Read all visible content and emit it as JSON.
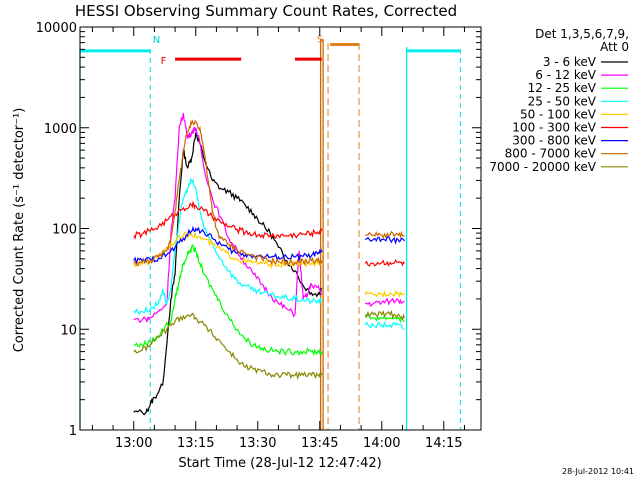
{
  "chart_data": {
    "type": "line",
    "title": "HESSI Observing Summary Count Rates, Corrected",
    "xlabel": "Start Time (28-Jul-12 12:47:42)",
    "ylabel": "Corrected Count Rate (s⁻¹ detector⁻¹)",
    "yscale": "log",
    "ylim": [
      1,
      10000
    ],
    "xlim_minutes_after_1247": [
      0,
      97
    ],
    "y_ticks": [
      {
        "value": 1,
        "label": "1"
      },
      {
        "value": 10,
        "label": "10"
      },
      {
        "value": 100,
        "label": "100"
      },
      {
        "value": 1000,
        "label": "1000"
      },
      {
        "value": 10000,
        "label": "10000"
      }
    ],
    "x_ticks": [
      {
        "value": 13,
        "label": "13:00"
      },
      {
        "value": 28,
        "label": "13:15"
      },
      {
        "value": 43,
        "label": "13:30"
      },
      {
        "value": 58,
        "label": "13:45"
      },
      {
        "value": 73,
        "label": "14:00"
      },
      {
        "value": 88,
        "label": "14:15"
      }
    ],
    "legend_title": [
      "Det 1,3,5,6,7,9,",
      "Att 0"
    ],
    "legend_position": "right",
    "series": [
      {
        "name": "3 - 6 keV",
        "color": "#000000",
        "points": [
          [
            13,
            1.5
          ],
          [
            16,
            1.5
          ],
          [
            17,
            1.8
          ],
          [
            18,
            2.1
          ],
          [
            20,
            2.8
          ],
          [
            22,
            20
          ],
          [
            23,
            35
          ],
          [
            24,
            200
          ],
          [
            25,
            600
          ],
          [
            26,
            400
          ],
          [
            27,
            500
          ],
          [
            28,
            900
          ],
          [
            29,
            700
          ],
          [
            30,
            500
          ],
          [
            32,
            300
          ],
          [
            34,
            250
          ],
          [
            36,
            230
          ],
          [
            38,
            200
          ],
          [
            40,
            170
          ],
          [
            42,
            140
          ],
          [
            44,
            110
          ],
          [
            46,
            90
          ],
          [
            48,
            65
          ],
          [
            50,
            48
          ],
          [
            52,
            38
          ],
          [
            54,
            27
          ],
          [
            56,
            23
          ],
          [
            57.5,
            22
          ],
          [
            58.5,
            25
          ]
        ]
      },
      {
        "name": "6 - 12 keV",
        "color": "#ff00ff",
        "points": [
          [
            13,
            12.5
          ],
          [
            16,
            12.5
          ],
          [
            17,
            13
          ],
          [
            19,
            15
          ],
          [
            21,
            18
          ],
          [
            22,
            90
          ],
          [
            23,
            200
          ],
          [
            24,
            1000
          ],
          [
            25,
            1400
          ],
          [
            26,
            800
          ],
          [
            27,
            900
          ],
          [
            28,
            1000
          ],
          [
            29,
            700
          ],
          [
            30,
            400
          ],
          [
            32,
            200
          ],
          [
            34,
            130
          ],
          [
            36,
            80
          ],
          [
            38,
            60
          ],
          [
            40,
            45
          ],
          [
            42,
            35
          ],
          [
            44,
            28
          ],
          [
            46,
            22
          ],
          [
            48,
            18
          ],
          [
            50,
            16
          ],
          [
            52,
            14
          ],
          [
            53,
            60
          ],
          [
            54,
            20
          ],
          [
            55,
            22
          ],
          [
            56,
            28
          ],
          [
            57.5,
            26
          ],
          [
            58.5,
            22
          ],
          [
            69,
            18
          ],
          [
            71,
            18
          ],
          [
            73,
            18.5
          ],
          [
            75,
            19
          ],
          [
            77,
            19.5
          ],
          [
            78.5,
            19
          ]
        ]
      },
      {
        "name": "12 - 25 keV",
        "color": "#00ff00",
        "points": [
          [
            13,
            7
          ],
          [
            15,
            7
          ],
          [
            17,
            7.5
          ],
          [
            19,
            8.5
          ],
          [
            20,
            10
          ],
          [
            22,
            12
          ],
          [
            23,
            20
          ],
          [
            24,
            30
          ],
          [
            25,
            45
          ],
          [
            26,
            55
          ],
          [
            27,
            65
          ],
          [
            28,
            60
          ],
          [
            29,
            45
          ],
          [
            30,
            35
          ],
          [
            32,
            25
          ],
          [
            34,
            18
          ],
          [
            36,
            13
          ],
          [
            38,
            10
          ],
          [
            40,
            8
          ],
          [
            42,
            7
          ],
          [
            44,
            6.5
          ],
          [
            46,
            6.2
          ],
          [
            48,
            6
          ],
          [
            50,
            6
          ],
          [
            52,
            6
          ],
          [
            54,
            6
          ],
          [
            56,
            6
          ],
          [
            57.5,
            6
          ],
          [
            58.5,
            6
          ],
          [
            69,
            13
          ],
          [
            71,
            13
          ],
          [
            73,
            13
          ],
          [
            75,
            13
          ],
          [
            77,
            13
          ],
          [
            78.5,
            12
          ]
        ]
      },
      {
        "name": "25 - 50 keV",
        "color": "#00ffff",
        "points": [
          [
            13,
            15
          ],
          [
            15,
            15
          ],
          [
            17,
            16
          ],
          [
            19,
            18
          ],
          [
            20,
            25
          ],
          [
            21,
            18
          ],
          [
            22,
            25
          ],
          [
            23,
            60
          ],
          [
            24,
            120
          ],
          [
            25,
            200
          ],
          [
            26,
            250
          ],
          [
            27,
            300
          ],
          [
            28,
            250
          ],
          [
            29,
            150
          ],
          [
            30,
            100
          ],
          [
            32,
            70
          ],
          [
            34,
            50
          ],
          [
            36,
            38
          ],
          [
            38,
            30
          ],
          [
            40,
            27
          ],
          [
            42,
            24
          ],
          [
            44,
            23
          ],
          [
            46,
            22
          ],
          [
            48,
            21
          ],
          [
            50,
            20.5
          ],
          [
            52,
            20
          ],
          [
            54,
            19.5
          ],
          [
            56,
            19
          ],
          [
            57.5,
            19
          ],
          [
            58.5,
            19
          ],
          [
            69,
            11
          ],
          [
            71,
            11
          ],
          [
            73,
            11
          ],
          [
            75,
            11
          ],
          [
            77,
            11
          ],
          [
            78.5,
            10
          ]
        ]
      },
      {
        "name": "50 - 100 keV",
        "color": "#ffcc00",
        "points": [
          [
            13,
            44
          ],
          [
            15,
            45
          ],
          [
            17,
            48
          ],
          [
            19,
            55
          ],
          [
            21,
            65
          ],
          [
            23,
            75
          ],
          [
            25,
            85
          ],
          [
            27,
            88
          ],
          [
            28,
            85
          ],
          [
            30,
            78
          ],
          [
            32,
            70
          ],
          [
            34,
            62
          ],
          [
            36,
            55
          ],
          [
            38,
            50
          ],
          [
            40,
            47
          ],
          [
            42,
            46
          ],
          [
            44,
            45
          ],
          [
            46,
            44
          ],
          [
            48,
            44
          ],
          [
            50,
            44
          ],
          [
            52,
            44.5
          ],
          [
            54,
            45
          ],
          [
            56,
            45
          ],
          [
            57.5,
            45
          ],
          [
            58.5,
            45
          ],
          [
            69,
            22
          ],
          [
            71,
            22
          ],
          [
            73,
            22.5
          ],
          [
            75,
            23
          ],
          [
            77,
            23
          ],
          [
            78.5,
            22
          ]
        ]
      },
      {
        "name": "100 - 300 keV",
        "color": "#ff0000",
        "points": [
          [
            13,
            85
          ],
          [
            15,
            88
          ],
          [
            17,
            95
          ],
          [
            19,
            105
          ],
          [
            21,
            120
          ],
          [
            23,
            140
          ],
          [
            25,
            160
          ],
          [
            27,
            170
          ],
          [
            28,
            168
          ],
          [
            30,
            150
          ],
          [
            32,
            130
          ],
          [
            34,
            115
          ],
          [
            36,
            105
          ],
          [
            38,
            98
          ],
          [
            40,
            92
          ],
          [
            42,
            88
          ],
          [
            44,
            86
          ],
          [
            46,
            85
          ],
          [
            48,
            85
          ],
          [
            50,
            85
          ],
          [
            52,
            86
          ],
          [
            54,
            88
          ],
          [
            56,
            90
          ],
          [
            57.5,
            92
          ],
          [
            58.5,
            95
          ],
          [
            69,
            45
          ],
          [
            71,
            45
          ],
          [
            73,
            46
          ],
          [
            75,
            46
          ],
          [
            77,
            46
          ],
          [
            78.5,
            45
          ]
        ]
      },
      {
        "name": "300 - 800 keV",
        "color": "#0000ff",
        "points": [
          [
            13,
            48
          ],
          [
            15,
            48
          ],
          [
            17,
            49
          ],
          [
            19,
            51
          ],
          [
            21,
            55
          ],
          [
            23,
            65
          ],
          [
            25,
            80
          ],
          [
            27,
            95
          ],
          [
            28,
            100
          ],
          [
            30,
            92
          ],
          [
            32,
            80
          ],
          [
            34,
            70
          ],
          [
            36,
            62
          ],
          [
            38,
            57
          ],
          [
            40,
            55
          ],
          [
            42,
            54
          ],
          [
            44,
            53
          ],
          [
            46,
            52
          ],
          [
            48,
            52
          ],
          [
            50,
            52
          ],
          [
            52,
            52
          ],
          [
            54,
            53
          ],
          [
            56,
            54
          ],
          [
            57.5,
            56
          ],
          [
            58.5,
            58
          ],
          [
            69,
            78
          ],
          [
            71,
            78
          ],
          [
            73,
            78
          ],
          [
            75,
            77
          ],
          [
            77,
            77
          ],
          [
            78.5,
            75
          ]
        ]
      },
      {
        "name": "800 - 7000 keV",
        "color": "#cc6600",
        "points": [
          [
            13,
            45
          ],
          [
            15,
            46
          ],
          [
            17,
            48
          ],
          [
            19,
            52
          ],
          [
            21,
            60
          ],
          [
            22,
            80
          ],
          [
            23,
            150
          ],
          [
            24,
            300
          ],
          [
            25,
            600
          ],
          [
            26,
            900
          ],
          [
            27,
            1100
          ],
          [
            28,
            1150
          ],
          [
            29,
            1000
          ],
          [
            30,
            600
          ],
          [
            31,
            300
          ],
          [
            32,
            150
          ],
          [
            33,
            100
          ],
          [
            34,
            80
          ],
          [
            36,
            70
          ],
          [
            38,
            62
          ],
          [
            40,
            57
          ],
          [
            42,
            53
          ],
          [
            44,
            50
          ],
          [
            46,
            48
          ],
          [
            48,
            47
          ],
          [
            50,
            46
          ],
          [
            52,
            46
          ],
          [
            54,
            47
          ],
          [
            56,
            48
          ],
          [
            57.5,
            48
          ],
          [
            58.5,
            48
          ],
          [
            69,
            85
          ],
          [
            71,
            86
          ],
          [
            73,
            86
          ],
          [
            75,
            87
          ],
          [
            77,
            86
          ],
          [
            78.5,
            84
          ]
        ]
      },
      {
        "name": "7000 - 20000 keV",
        "color": "#888800",
        "points": [
          [
            13,
            6
          ],
          [
            15,
            6.2
          ],
          [
            17,
            7
          ],
          [
            19,
            8.5
          ],
          [
            21,
            10
          ],
          [
            23,
            12
          ],
          [
            25,
            13.5
          ],
          [
            27,
            14
          ],
          [
            28,
            13
          ],
          [
            30,
            11
          ],
          [
            32,
            9
          ],
          [
            34,
            7.5
          ],
          [
            36,
            6
          ],
          [
            38,
            5
          ],
          [
            40,
            4.2
          ],
          [
            42,
            4
          ],
          [
            44,
            3.8
          ],
          [
            46,
            3.6
          ],
          [
            48,
            3.5
          ],
          [
            50,
            3.5
          ],
          [
            52,
            3.5
          ],
          [
            54,
            3.5
          ],
          [
            56,
            3.5
          ],
          [
            57.5,
            3.5
          ],
          [
            58.5,
            3.5
          ],
          [
            69,
            14
          ],
          [
            71,
            14
          ],
          [
            73,
            14
          ],
          [
            75,
            14
          ],
          [
            77,
            14
          ],
          [
            78.5,
            13
          ]
        ]
      }
    ],
    "annotations": {
      "night_level_value": 5800,
      "night_segments": [
        [
          0,
          17
        ],
        [
          79,
          92
        ]
      ],
      "flare_marker_value": 4800,
      "flare_segments": [
        [
          23,
          39
        ],
        [
          52,
          58.5
        ]
      ],
      "saa_marker_value": 6700,
      "saa_segment": [
        60.5,
        67.5
      ],
      "night_dashed_x": [
        17,
        92
      ],
      "saa_dashed_x": [
        60,
        67.5
      ],
      "orange_solid_x": [
        58.2,
        58.8
      ],
      "cyan_solid_x": [
        0,
        79
      ],
      "labels": {
        "night": "N",
        "flare": "F",
        "saa": "S"
      }
    },
    "timestamp": "28-Jul-2012 10:41"
  }
}
